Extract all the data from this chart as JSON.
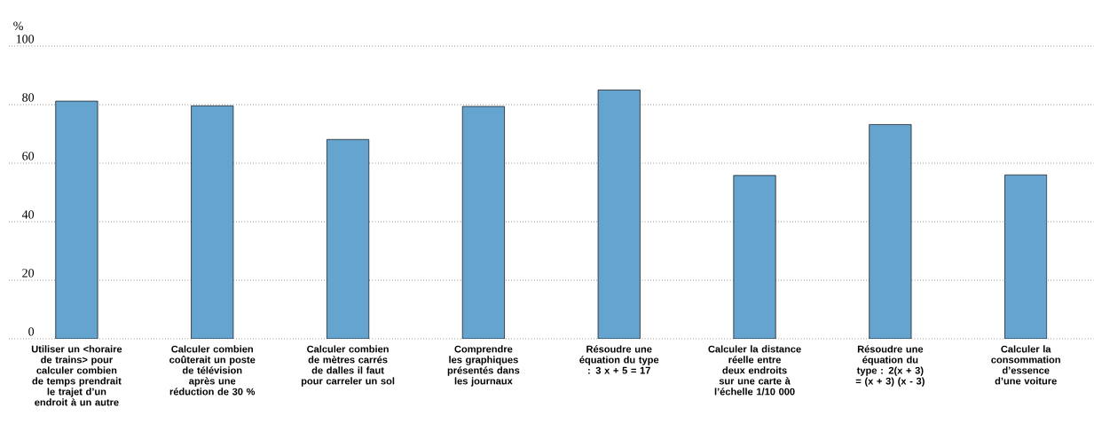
{
  "chart_data": {
    "type": "bar",
    "ylabel": "%",
    "categories": [
      "Utiliser un <horaire de trains> pour calculer combien de temps prendrait le trajet d’un endroit à un autre",
      "Calculer combien coûterait un poste de télévision après une réduction de 30 %",
      "Calculer combien de mètres carrés de dalles il faut pour carreler un sol",
      "Comprendre les graphiques présentés dans les journaux",
      "Résoudre une équation du type : 3 x + 5 = 17",
      "Calculer la distance réelle entre deux endroits sur une carte à l’échelle 1/10 000",
      "Résoudre une équation du type : 2(x + 3) = (x + 3) (x - 3)",
      "Calculer la consommation d’essence d’une voiture"
    ],
    "values": [
      81.2,
      79.6,
      68.1,
      79.4,
      85.0,
      55.8,
      73.2,
      56.0
    ],
    "color": "#66a4d0",
    "ylim": [
      0,
      100
    ],
    "yticks": [
      0,
      20,
      40,
      60,
      80,
      100
    ],
    "grid": "y"
  }
}
